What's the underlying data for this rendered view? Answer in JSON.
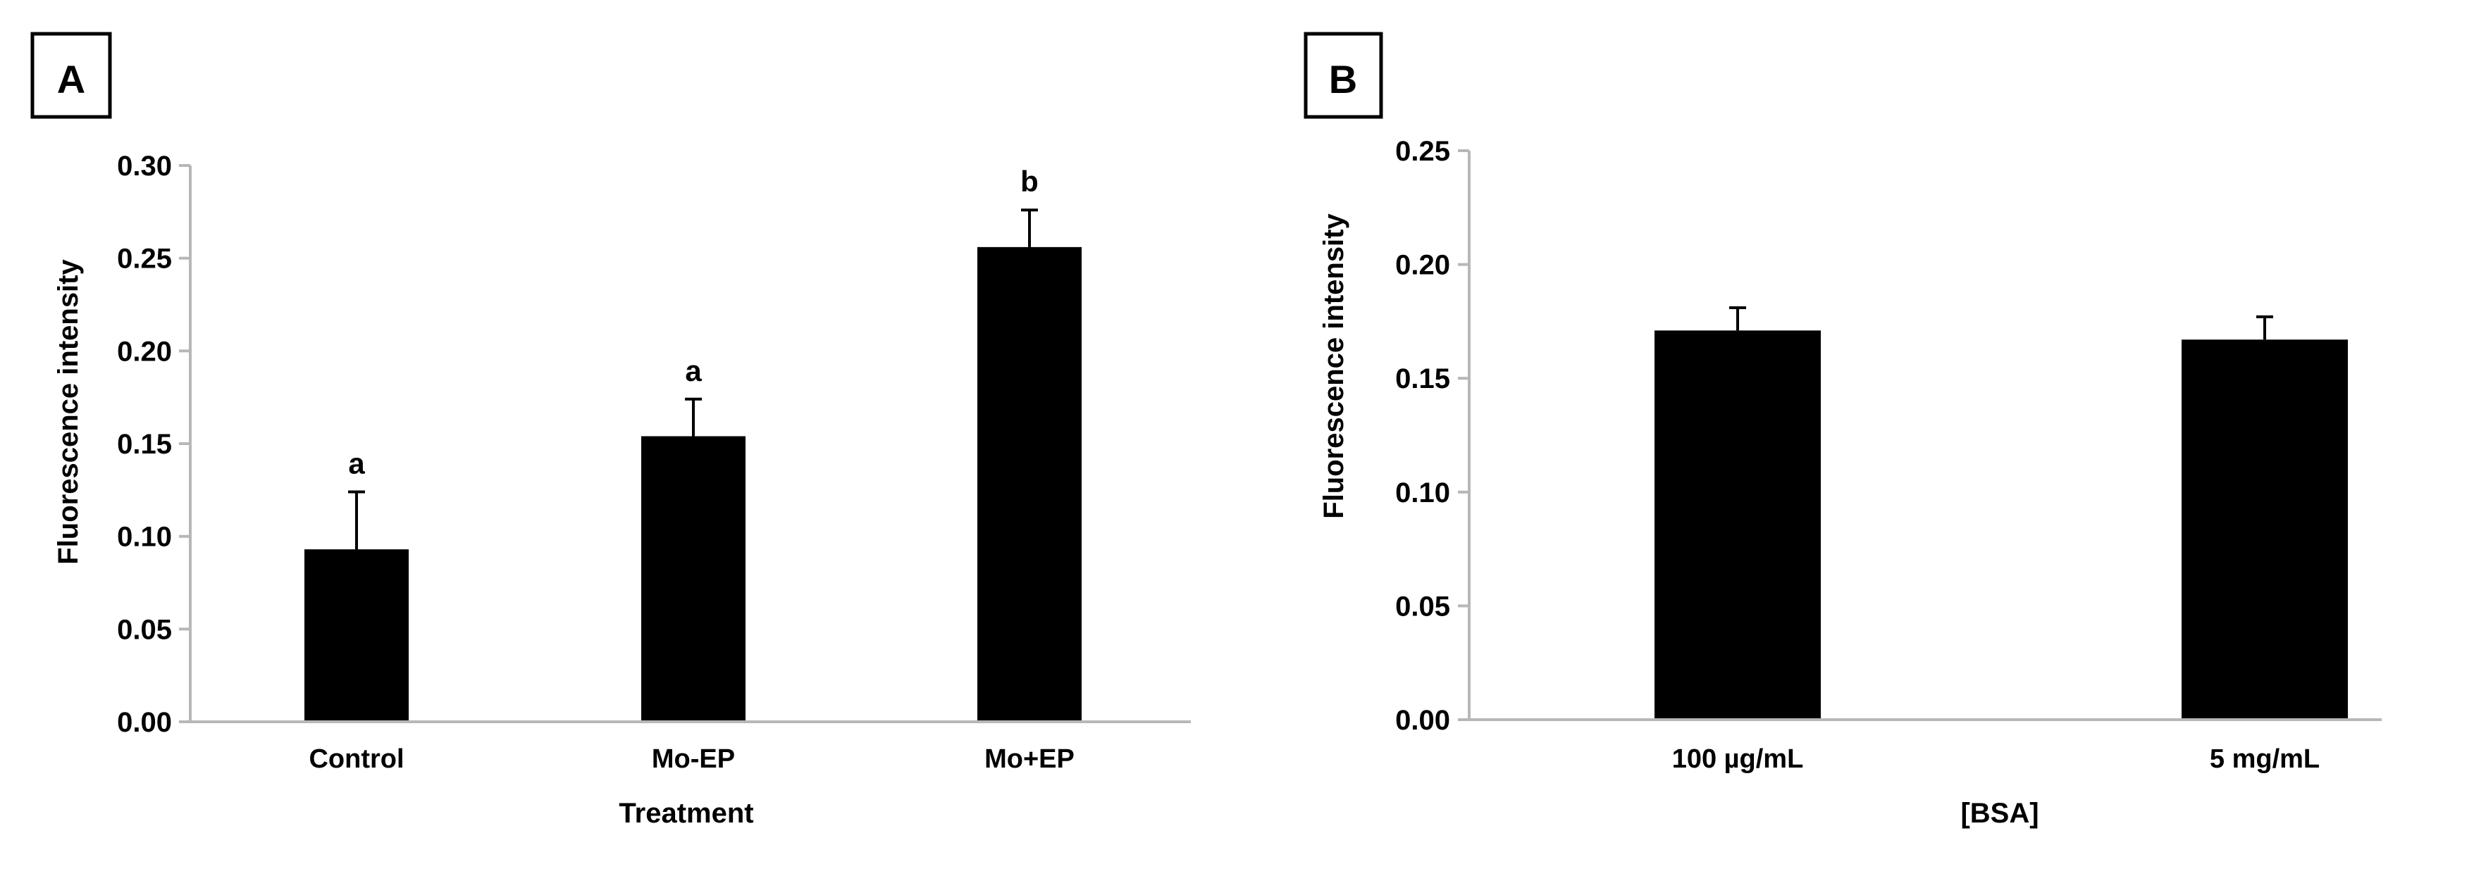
{
  "colors": {
    "bar": "#000000",
    "axis": "#b7b7b7",
    "error_bar": "#000000",
    "background": "#ffffff"
  },
  "chart_data": [
    {
      "type": "bar",
      "panel_label": "A",
      "categories": [
        "Control",
        "Mo-EP",
        "Mo+EP"
      ],
      "values": [
        0.093,
        0.154,
        0.256
      ],
      "error_upper": [
        0.031,
        0.02,
        0.02
      ],
      "significance_labels": [
        "a",
        "a",
        "b"
      ],
      "xlabel": "Treatment",
      "ylabel": "Fluorescence intensity",
      "ylim": [
        0,
        0.3
      ],
      "yticks": [
        "0.00",
        "0.05",
        "0.10",
        "0.15",
        "0.20",
        "0.25",
        "0.30"
      ],
      "grid": false
    },
    {
      "type": "bar",
      "panel_label": "B",
      "categories": [
        "100 µg/mL",
        "5 mg/mL"
      ],
      "values": [
        0.171,
        0.167
      ],
      "error_upper": [
        0.01,
        0.01
      ],
      "xlabel": "[BSA]",
      "ylabel": "Fluorescence intensity",
      "ylim": [
        0,
        0.25
      ],
      "yticks": [
        "0.00",
        "0.05",
        "0.10",
        "0.15",
        "0.20",
        "0.25"
      ],
      "grid": false
    }
  ]
}
